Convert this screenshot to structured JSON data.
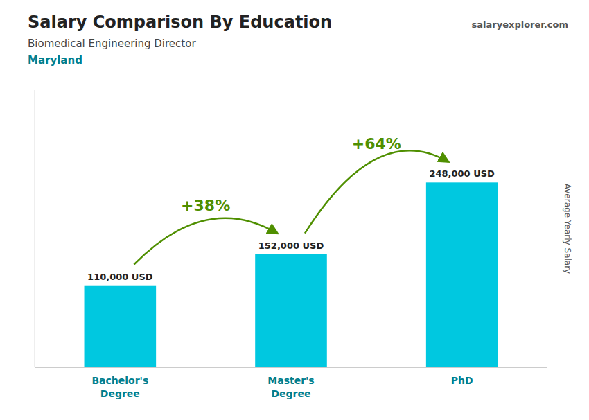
{
  "chart_data": {
    "type": "bar",
    "title": "Salary Comparison By Education",
    "subtitle": "Biomedical Engineering Director",
    "location": "Maryland",
    "source": "salaryexplorer.com",
    "categories": [
      "Bachelor's\nDegree",
      "Master's\nDegree",
      "PhD"
    ],
    "values": [
      110000,
      152000,
      248000
    ],
    "value_labels": [
      "110,000 USD",
      "152,000 USD",
      "248,000 USD"
    ],
    "data_labels": true,
    "annotations": [
      "+38%",
      "+64%"
    ],
    "ylabel": "Average Yearly Salary",
    "color": "#00c8e0",
    "ylim": [
      0,
      372000
    ],
    "tick_labels": "x"
  }
}
